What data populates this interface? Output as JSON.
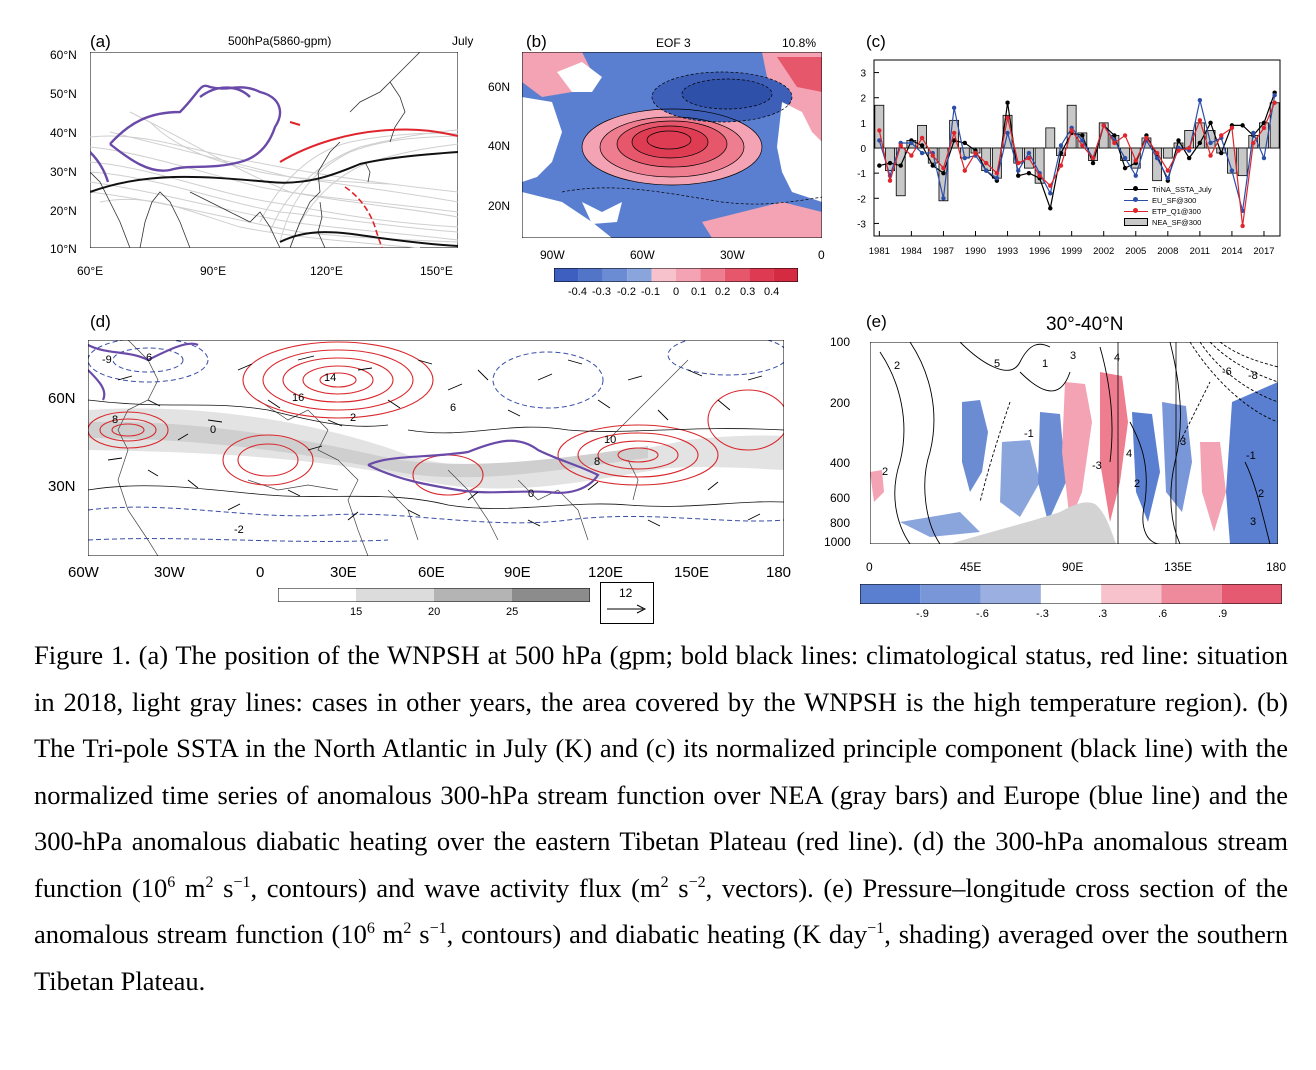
{
  "panel_a": {
    "label": "(a)",
    "title": "500hPa(5860-gpm)",
    "month": "July",
    "lat_ticks": [
      "60°N",
      "50°N",
      "40°N",
      "30°N",
      "20°N",
      "10°N"
    ],
    "lon_ticks": [
      "60°E",
      "90°E",
      "120°E",
      "150°E"
    ]
  },
  "panel_b": {
    "label": "(b)",
    "title": "EOF 3",
    "variance": "10.8%",
    "lat_ticks": [
      "60N",
      "40N",
      "20N"
    ],
    "lon_ticks": [
      "90W",
      "60W",
      "30W",
      "0"
    ],
    "colorbar_ticks": [
      "-0.4",
      "-0.3",
      "-0.2",
      "-0.1",
      "0",
      "0.1",
      "0.2",
      "0.3",
      "0.4"
    ]
  },
  "panel_c": {
    "label": "(c)",
    "y_ticks": [
      "3",
      "2",
      "1",
      "0",
      "-1",
      "-2",
      "-3"
    ],
    "x_ticks": [
      "1981",
      "1984",
      "1987",
      "1990",
      "1993",
      "1996",
      "1999",
      "2002",
      "2005",
      "2008",
      "2011",
      "2014",
      "2017"
    ],
    "legend": [
      "TriNA_SSTA_July",
      "EU_SF@300",
      "ETP_Q1@300",
      "NEA_SF@300"
    ],
    "colors": {
      "black_line": "#000000",
      "blue_line": "#2b4ea8",
      "red_line": "#e0242c",
      "bars": "#c8c8c8"
    }
  },
  "chart_data": {
    "type": "bar",
    "x": [
      1981,
      1982,
      1983,
      1984,
      1985,
      1986,
      1987,
      1988,
      1989,
      1990,
      1991,
      1992,
      1993,
      1994,
      1995,
      1996,
      1997,
      1998,
      1999,
      2000,
      2001,
      2002,
      2003,
      2004,
      2005,
      2006,
      2007,
      2008,
      2009,
      2010,
      2011,
      2012,
      2013,
      2014,
      2015,
      2016,
      2017,
      2018
    ],
    "ylim": [
      -3.5,
      3.5
    ],
    "series": [
      {
        "name": "NEA_SF@300",
        "kind": "bar",
        "values": [
          1.7,
          -0.9,
          -1.9,
          0.3,
          0.9,
          -0.6,
          -2.1,
          1.1,
          -0.4,
          -0.2,
          -0.9,
          -1.2,
          1.3,
          -0.6,
          -0.8,
          -1.4,
          0.8,
          -0.3,
          1.7,
          0.6,
          -0.5,
          1.0,
          0.5,
          -0.5,
          -0.8,
          0.4,
          -1.3,
          -0.4,
          0.2,
          0.7,
          1.0,
          0.7,
          -0.2,
          -1.0,
          -1.1,
          0.5,
          1.0,
          1.8
        ]
      },
      {
        "name": "TriNA_SSTA_July",
        "kind": "line",
        "values": [
          -0.7,
          -0.6,
          -0.7,
          0.3,
          0.1,
          -0.7,
          -1.0,
          0.3,
          0.2,
          -0.1,
          -0.9,
          -1.3,
          1.8,
          -1.1,
          -1.0,
          -1.2,
          -2.4,
          -0.2,
          0.6,
          0.5,
          -0.6,
          0.9,
          0.5,
          -0.8,
          -0.6,
          0.5,
          -0.3,
          -1.3,
          0.3,
          -0.4,
          0.2,
          1.0,
          -0.2,
          0.9,
          0.9,
          0.5,
          1.0,
          2.2
        ]
      },
      {
        "name": "EU_SF@300",
        "kind": "line",
        "values": [
          0.3,
          -1.1,
          0.2,
          0.2,
          -0.2,
          -0.2,
          -2.0,
          1.6,
          -0.4,
          -0.3,
          -0.9,
          -1.2,
          0.6,
          -0.9,
          -0.2,
          -1.0,
          -1.8,
          0.1,
          0.8,
          0.3,
          -0.4,
          0.9,
          0.3,
          -0.4,
          -1.1,
          0.3,
          -0.4,
          -1.2,
          0.0,
          -0.1,
          1.9,
          0.2,
          0.4,
          -0.9,
          -2.5,
          0.6,
          -0.4,
          2.1
        ]
      },
      {
        "name": "ETP_Q1@300",
        "kind": "line",
        "values": [
          0.7,
          -1.3,
          0.1,
          -0.3,
          0.4,
          -0.3,
          -0.8,
          0.6,
          -0.9,
          -0.2,
          -0.6,
          -1.0,
          1.2,
          -0.6,
          -0.4,
          -1.1,
          -1.5,
          -0.7,
          0.7,
          0.1,
          -0.4,
          0.9,
          0.2,
          0.5,
          -0.5,
          0.4,
          -0.2,
          -0.9,
          -0.1,
          0.0,
          1.1,
          -0.3,
          0.5,
          0.8,
          -3.1,
          0.2,
          0.8,
          1.8
        ]
      }
    ]
  },
  "panel_d": {
    "label": "(d)",
    "lat_ticks": [
      "60N",
      "30N"
    ],
    "lon_ticks": [
      "60W",
      "30W",
      "0",
      "30E",
      "60E",
      "90E",
      "120E",
      "150E",
      "180"
    ],
    "colorbar_ticks": [
      "15",
      "20",
      "25"
    ],
    "ref_vector": "12",
    "contour_labels": [
      "6",
      "14",
      "8",
      "16",
      "6",
      "10",
      "8",
      "2",
      "0",
      "-2",
      "-9",
      "0"
    ]
  },
  "panel_e": {
    "label": "(e)",
    "title": "30°-40°N",
    "y_ticks": [
      "100",
      "200",
      "400",
      "600",
      "800",
      "1000"
    ],
    "x_ticks": [
      "0",
      "45E",
      "90E",
      "135E",
      "180"
    ],
    "colorbar_ticks": [
      "-.9",
      "-.6",
      "-.3",
      ".3",
      ".6",
      ".9"
    ],
    "contour_labels": [
      "2",
      "5",
      "1",
      "3",
      "4",
      "-6",
      "-8",
      "-1",
      "2",
      "-3",
      "4",
      "2",
      "3",
      "-1",
      "2",
      "3"
    ]
  },
  "caption": {
    "p1": "Figure 1. (a) The position of the WNPSH at 500 hPa (gpm; bold black lines: climatological status, red line: situation in 2018, light gray lines: cases in other years, the area covered by the WNPSH is the high temperature region). (b) The Tri-pole SSTA in the North Atlantic in July (K) and (c) its normalized principle component (black line) with the normalized time series of anomalous 300-hPa stream function over NEA (gray bars) and Europe (blue line) and the 300-hPa anomalous diabatic heating over the eastern Tibetan Plateau (red line). (d) the 300-hPa anomalous stream function (10",
    "s1": "6",
    "p2": " m",
    "s2": "2",
    "p3": " s",
    "s3": "−1",
    "p4": ", contours) and wave activity flux (m",
    "s4": "2",
    "p5": " s",
    "s5": "−2",
    "p6": ", vectors). (e) Pressure–longitude cross section of the anomalous stream function (10",
    "s6": "6",
    "p7": " m",
    "s7": "2",
    "p8": " s",
    "s8": "−1",
    "p9": ", contours) and diabatic heating (K day",
    "s9": "−1",
    "p10": ", shading) averaged over the southern Tibetan Plateau."
  }
}
